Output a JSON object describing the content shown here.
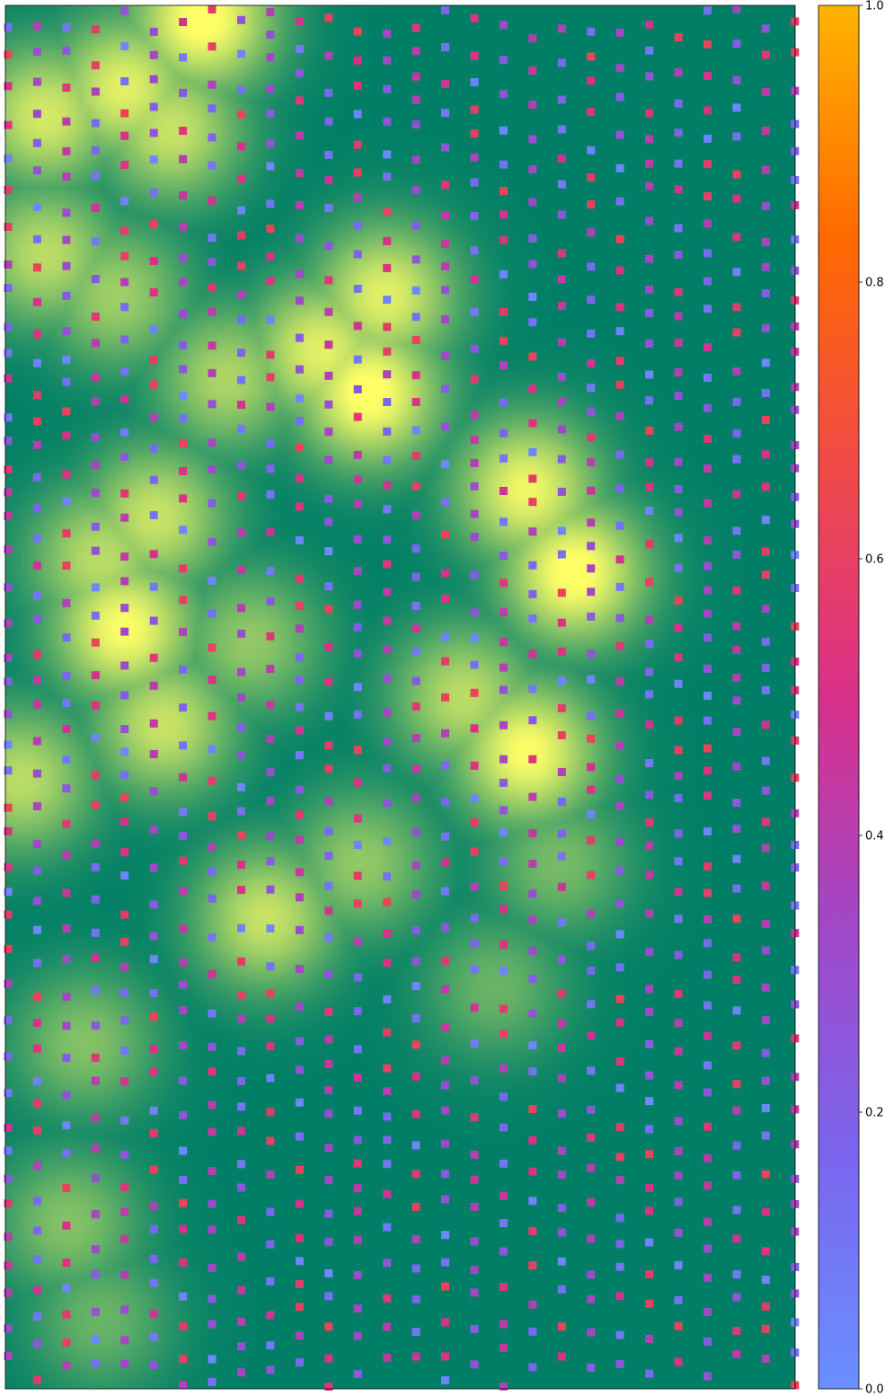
{
  "chart_data": {
    "type": "heatmap",
    "title": "",
    "xlabel": "",
    "ylabel": "",
    "axes_visible": false,
    "background_field": {
      "colormap": "summer",
      "low_color": "#007f66",
      "high_color": "#ffff66",
      "peaks": [
        {
          "x": 0.25,
          "y": 0.01,
          "intensity": 1.0
        },
        {
          "x": 0.15,
          "y": 0.06,
          "intensity": 0.85
        },
        {
          "x": 0.05,
          "y": 0.08,
          "intensity": 0.8
        },
        {
          "x": 0.21,
          "y": 0.09,
          "intensity": 0.75
        },
        {
          "x": 0.05,
          "y": 0.18,
          "intensity": 0.7
        },
        {
          "x": 0.14,
          "y": 0.21,
          "intensity": 0.6
        },
        {
          "x": 0.48,
          "y": 0.21,
          "intensity": 0.85
        },
        {
          "x": 0.46,
          "y": 0.28,
          "intensity": 1.0
        },
        {
          "x": 0.4,
          "y": 0.25,
          "intensity": 0.85
        },
        {
          "x": 0.28,
          "y": 0.27,
          "intensity": 0.65
        },
        {
          "x": 0.66,
          "y": 0.35,
          "intensity": 0.9
        },
        {
          "x": 0.72,
          "y": 0.41,
          "intensity": 1.0
        },
        {
          "x": 0.15,
          "y": 0.45,
          "intensity": 0.95
        },
        {
          "x": 0.12,
          "y": 0.4,
          "intensity": 0.7
        },
        {
          "x": 0.19,
          "y": 0.37,
          "intensity": 0.75
        },
        {
          "x": 0.31,
          "y": 0.46,
          "intensity": 0.55
        },
        {
          "x": 0.2,
          "y": 0.52,
          "intensity": 0.75
        },
        {
          "x": 0.66,
          "y": 0.54,
          "intensity": 0.95
        },
        {
          "x": 0.58,
          "y": 0.5,
          "intensity": 0.7
        },
        {
          "x": 0.02,
          "y": 0.56,
          "intensity": 0.7
        },
        {
          "x": 0.33,
          "y": 0.66,
          "intensity": 0.75
        },
        {
          "x": 0.45,
          "y": 0.62,
          "intensity": 0.55
        },
        {
          "x": 0.62,
          "y": 0.71,
          "intensity": 0.4
        },
        {
          "x": 0.1,
          "y": 0.75,
          "intensity": 0.5
        },
        {
          "x": 0.08,
          "y": 0.88,
          "intensity": 0.5
        },
        {
          "x": 0.12,
          "y": 0.95,
          "intensity": 0.4
        },
        {
          "x": 0.7,
          "y": 0.62,
          "intensity": 0.45
        }
      ]
    },
    "scatter": {
      "marker": "square",
      "grid_columns": 28,
      "row_step_fraction": 0.0222,
      "values_pattern": [
        0.12,
        0.38,
        0.55,
        0.22,
        0.05,
        0.47,
        0.3,
        0.62,
        0.15,
        0.41,
        0.27,
        0.58,
        0.09,
        0.35,
        0.5,
        0.18,
        0.44,
        0.03,
        0.6,
        0.25,
        0.33,
        0.52,
        0.11,
        0.39
      ]
    },
    "colorbar": {
      "colormap": "plasma-like",
      "colors": [
        "#6a8fff",
        "#7a66ee",
        "#a048c8",
        "#d9308a",
        "#f04a48",
        "#ff6a00",
        "#ffb300"
      ],
      "range": [
        0.0,
        1.0
      ],
      "ticks": [
        "0.0",
        "0.2",
        "0.4",
        "0.6",
        "0.8",
        "1.0"
      ],
      "tick_values": [
        0.0,
        0.2,
        0.4,
        0.6,
        0.8,
        1.0
      ],
      "label": ""
    }
  }
}
